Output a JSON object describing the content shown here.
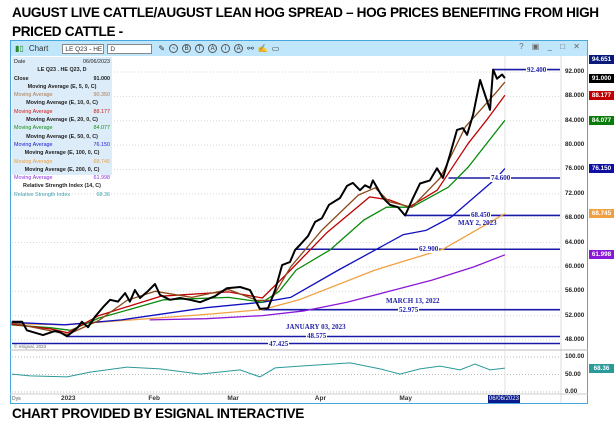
{
  "title": "AUGUST LIVE CATTLE/AUGUST LEAN HOG SPREAD –  HOG PRICES BENEFITING FROM HIGH PRICED CATTLE   -",
  "footer": "CHART PROVIDED BY ESIGNAL INTERACTIVE",
  "window": {
    "label": "Chart",
    "symbol": "LE Q23 - HE Q",
    "interval": "D",
    "controls": "? ▣ _ □ ✕",
    "copyright": "© eSignal, 2023",
    "days_label": "Dys"
  },
  "legend": {
    "date_label": "Date",
    "date_value": "06/06/2023",
    "symbol": "LE Q23 . HE Q23, D",
    "close_label": "Close",
    "close_value": "91.000",
    "ma5_hd": "Moving Average (E, 5, 0, C)",
    "ma5_label": "Moving Average",
    "ma5_value": "90.350",
    "ma10_hd": "Moving Average (E, 10, 0, C)",
    "ma10_label": "Moving Average",
    "ma10_value": "88.177",
    "ma20_hd": "Moving Average (E, 20, 0, C)",
    "ma20_label": "Moving Average",
    "ma20_value": "84.077",
    "ma50_hd": "Moving Average (E, 50, 0, C)",
    "ma50_label": "Moving Average",
    "ma50_value": "76.150",
    "ma100_hd": "Moving Average (E, 100, 0, C)",
    "ma100_label": "Moving Average",
    "ma100_value": "68.745",
    "ma200_hd": "Moving Average (E, 200, 0, C)",
    "ma200_label": "Moving Average",
    "ma200_value": "61.998",
    "rsi_hd": "Relative Strength Index (14, C)",
    "rsi_label": "Relative Strength Index",
    "rsi_value": "68.36"
  },
  "chart_data": {
    "type": "line",
    "title": "LE Q23 . HE Q23, D",
    "x_unit": "days since 2023-01-01",
    "ylim": [
      45.5,
      95
    ],
    "y_ticks": [
      "48.000",
      "52.000",
      "56.000",
      "60.000",
      "64.000",
      "68.000",
      "72.000",
      "76.000",
      "80.000",
      "84.000",
      "88.000",
      "92.000"
    ],
    "y_tick_values": [
      48,
      52,
      56,
      60,
      64,
      68,
      72,
      76,
      80,
      84,
      88,
      92
    ],
    "x_ticks": [
      {
        "label": "2023",
        "day": 0
      },
      {
        "label": "Feb",
        "day": 31
      },
      {
        "label": "Mar",
        "day": 59
      },
      {
        "label": "Apr",
        "day": 90
      },
      {
        "label": "May",
        "day": 120
      }
    ],
    "cursor": {
      "label": "06/06/2023",
      "day": 156
    },
    "axis_badges": [
      {
        "value": "94.651",
        "color": "#0a1a7a",
        "price": 94.651
      },
      {
        "value": "91.000",
        "color": "#000000",
        "price": 91.0
      },
      {
        "value": "88.177",
        "color": "#c00000",
        "price": 88.177
      },
      {
        "value": "84.077",
        "color": "#0a7a0a",
        "price": 84.077
      },
      {
        "value": "76.150",
        "color": "#1010a0",
        "price": 76.15
      },
      {
        "value": "68.745",
        "color": "#f0a040",
        "price": 68.745
      },
      {
        "value": "61.998",
        "color": "#8a18d8",
        "price": 61.998
      }
    ],
    "series": [
      {
        "name": "Close",
        "color": "#000000",
        "points": [
          [
            -18.8,
            51
          ],
          [
            -15.2,
            51
          ],
          [
            -13.5,
            49.6
          ],
          [
            -7.8,
            48.8
          ],
          [
            -3.5,
            49.5
          ],
          [
            -1.8,
            49.3
          ],
          [
            0.7,
            48.6
          ],
          [
            4.6,
            50.1
          ],
          [
            6,
            51
          ],
          [
            8.2,
            50.1
          ],
          [
            10.6,
            51.8
          ],
          [
            13.5,
            53.4
          ],
          [
            16,
            54.6
          ],
          [
            18.8,
            54.3
          ],
          [
            21.3,
            55.7
          ],
          [
            23,
            54.3
          ],
          [
            24.8,
            56.2
          ],
          [
            26.6,
            54.9
          ],
          [
            29.1,
            55.9
          ],
          [
            31.9,
            57.2
          ],
          [
            33.7,
            55.4
          ],
          [
            37.2,
            54.6
          ],
          [
            40.8,
            54.9
          ],
          [
            44.3,
            54.6
          ],
          [
            47.9,
            54.2
          ],
          [
            53.2,
            55.2
          ],
          [
            57.4,
            56.5
          ],
          [
            62.1,
            56.7
          ],
          [
            65.6,
            56.2
          ],
          [
            67.4,
            54.6
          ],
          [
            69.1,
            53.1
          ],
          [
            72,
            53.2
          ],
          [
            74.5,
            56.2
          ],
          [
            77,
            60.3
          ],
          [
            79.8,
            60.8
          ],
          [
            81.6,
            62.8
          ],
          [
            83.3,
            63.6
          ],
          [
            86.2,
            65.1
          ],
          [
            88.7,
            67.4
          ],
          [
            91.1,
            68
          ],
          [
            93.6,
            70.2
          ],
          [
            97.5,
            71.3
          ],
          [
            100,
            73.3
          ],
          [
            102.1,
            73.8
          ],
          [
            104.6,
            72.6
          ],
          [
            106.4,
            73.4
          ],
          [
            108.2,
            73
          ],
          [
            109.2,
            74.2
          ],
          [
            112.8,
            71.3
          ],
          [
            115.2,
            70.2
          ],
          [
            118.1,
            69.8
          ],
          [
            120.6,
            68.45
          ],
          [
            123.4,
            71.3
          ],
          [
            125.9,
            73.7
          ],
          [
            129.4,
            74.2
          ],
          [
            131.9,
            76.2
          ],
          [
            134,
            74.6
          ],
          [
            136.5,
            78.4
          ],
          [
            139,
            82.5
          ],
          [
            141.1,
            82.8
          ],
          [
            142.6,
            81.7
          ],
          [
            144.7,
            85
          ],
          [
            147.2,
            90.7
          ],
          [
            150.7,
            85.8
          ],
          [
            151.8,
            92.4
          ],
          [
            153.2,
            90.9
          ],
          [
            155,
            91.6
          ],
          [
            156,
            91
          ]
        ]
      },
      {
        "name": "MA 5",
        "color": "#8b4a1a",
        "points": [
          [
            -19,
            50.8
          ],
          [
            -5,
            49.5
          ],
          [
            1,
            48.9
          ],
          [
            12,
            51.2
          ],
          [
            22,
            54.5
          ],
          [
            32,
            56
          ],
          [
            45,
            55
          ],
          [
            58,
            56.3
          ],
          [
            68,
            54.5
          ],
          [
            73,
            54.5
          ],
          [
            80,
            60
          ],
          [
            91,
            66
          ],
          [
            104,
            71.8
          ],
          [
            110,
            73
          ],
          [
            115,
            70.7
          ],
          [
            123,
            69.8
          ],
          [
            133,
            74.6
          ],
          [
            142,
            83
          ],
          [
            153,
            88.7
          ],
          [
            156,
            90.35
          ]
        ]
      },
      {
        "name": "MA 10",
        "color": "#c00000",
        "points": [
          [
            -19,
            50.6
          ],
          [
            -5,
            49.8
          ],
          [
            1,
            49.2
          ],
          [
            12,
            52
          ],
          [
            34,
            55.2
          ],
          [
            58,
            55.9
          ],
          [
            70,
            54.9
          ],
          [
            80,
            59.5
          ],
          [
            93,
            65.7
          ],
          [
            106,
            70.7
          ],
          [
            108,
            71.5
          ],
          [
            115,
            71
          ],
          [
            122,
            69.8
          ],
          [
            132,
            72.6
          ],
          [
            143,
            80.3
          ],
          [
            150,
            84.4
          ],
          [
            156,
            88.177
          ]
        ]
      },
      {
        "name": "MA 20",
        "color": "#0a8a0a",
        "points": [
          [
            -19,
            50.5
          ],
          [
            -5,
            50
          ],
          [
            2,
            49.6
          ],
          [
            12,
            51.6
          ],
          [
            35,
            54.6
          ],
          [
            58,
            55
          ],
          [
            70,
            54.2
          ],
          [
            76,
            56
          ],
          [
            82,
            59.5
          ],
          [
            94,
            62.8
          ],
          [
            106,
            67.7
          ],
          [
            114,
            69.8
          ],
          [
            123,
            69.8
          ],
          [
            136,
            73.1
          ],
          [
            143,
            76.4
          ],
          [
            156,
            84.077
          ]
        ]
      },
      {
        "name": "MA 50",
        "color": "#1010c0",
        "points": [
          [
            -19,
            50.9
          ],
          [
            0,
            50.5
          ],
          [
            20,
            51.3
          ],
          [
            50,
            53.3
          ],
          [
            70,
            54.2
          ],
          [
            80,
            55
          ],
          [
            97,
            59.5
          ],
          [
            120,
            65.3
          ],
          [
            128,
            66
          ],
          [
            137,
            68.2
          ],
          [
            153,
            74.6
          ],
          [
            156,
            76.15
          ]
        ]
      },
      {
        "name": "MA 100",
        "color": "#f0a040",
        "points": [
          [
            -19,
            50.7
          ],
          [
            0,
            50.5
          ],
          [
            50,
            52.2
          ],
          [
            70,
            53
          ],
          [
            83,
            54.6
          ],
          [
            110,
            59.5
          ],
          [
            134,
            62.9
          ],
          [
            156,
            68.745
          ]
        ]
      },
      {
        "name": "MA 200",
        "color": "#8a18d8",
        "points": [
          [
            30,
            51.3
          ],
          [
            50,
            51.5
          ],
          [
            70,
            52
          ],
          [
            85,
            52.8
          ],
          [
            100,
            54.2
          ],
          [
            115,
            56
          ],
          [
            130,
            57.8
          ],
          [
            145,
            60
          ],
          [
            156,
            61.998
          ]
        ]
      }
    ],
    "levels": [
      {
        "value": "92.400",
        "price": 92.4,
        "from_day": 152,
        "annotation": ""
      },
      {
        "value": "74.600",
        "price": 74.6,
        "from_day": 136,
        "annotation": ""
      },
      {
        "value": "68.450",
        "price": 68.45,
        "from_day": 120.6,
        "annotation": "MAY 2, 2023"
      },
      {
        "value": "62.900",
        "price": 62.9,
        "from_day": 82,
        "annotation": ""
      },
      {
        "value": "52.975",
        "price": 52.975,
        "from_day": 69.5,
        "annotation": "MARCH 13, 2022"
      },
      {
        "value": "48.575",
        "price": 48.575,
        "from_day": 0.7,
        "annotation": "JANUARY 03, 2023"
      },
      {
        "value": "47.425",
        "price": 47.425,
        "from_day": -19,
        "annotation": ""
      }
    ],
    "rsi": {
      "name": "Relative Strength Index (14)",
      "color": "#2a9a9a",
      "ylim": [
        0,
        100
      ],
      "ticks": [
        "100.00",
        "50.00",
        "0.00"
      ],
      "tick_values": [
        100,
        50,
        0
      ],
      "badge": "68.36",
      "points": [
        [
          -18.8,
          51
        ],
        [
          -12.4,
          46
        ],
        [
          0.7,
          43
        ],
        [
          8.9,
          57
        ],
        [
          22,
          71
        ],
        [
          33.7,
          66
        ],
        [
          47.9,
          51
        ],
        [
          62.1,
          63
        ],
        [
          69.1,
          43
        ],
        [
          74.5,
          69
        ],
        [
          83.3,
          74
        ],
        [
          101.1,
          83
        ],
        [
          111.7,
          66
        ],
        [
          118.8,
          51
        ],
        [
          125.9,
          66
        ],
        [
          133,
          74
        ],
        [
          140.1,
          63
        ],
        [
          145.4,
          80
        ],
        [
          150.7,
          63
        ],
        [
          156,
          68.36
        ]
      ]
    }
  }
}
